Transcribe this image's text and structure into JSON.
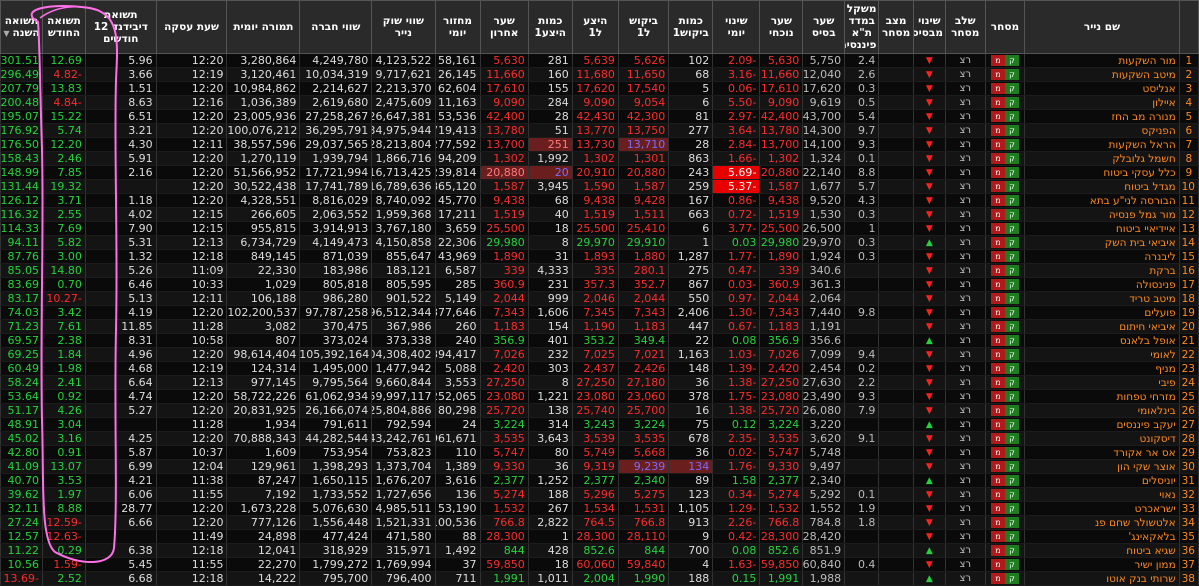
{
  "columns": [
    "שם נייר",
    "מסחר",
    "שלב מסחר",
    "שינוי מבסיס",
    "מצב מסחר",
    "משקל במדד ת\"א פיננסים",
    "שער בסיס",
    "שער נוכחי",
    "שינוי יומי",
    "כמות ביקוש1",
    "ביקוש ל1",
    "היצע ל1",
    "כמות היצע1",
    "שער אחרון",
    "מחזור יומי",
    "שווי שוק נייר",
    "שווי חברה",
    "תמורה יומית",
    "שעת עסקה",
    "תשואת דיבידנד 12 חודשים",
    "תשואה החודש",
    "תשואה השנה"
  ],
  "trading_stage": "רצ",
  "sort_icon": "sort-desc-icon",
  "rows": [
    {
      "i": "1",
      "name": "מור השקעות",
      "tri": "d",
      "w": "2.4",
      "base": "5,750",
      "cur": "5,630",
      "chg": "-2.09",
      "bq": "102",
      "bid": "5,626",
      "ask": "5,639",
      "aq": "281",
      "last": "5,630",
      "vol": "58,161",
      "mcap": "4,123,522",
      "cv": "4,249,780",
      "turn": "3,280,864",
      "time": "12:20",
      "div": "5.96",
      "mon": "12.69",
      "yr": "301.51"
    },
    {
      "i": "2",
      "name": "מיטב השקעות",
      "tri": "d",
      "w": "2.6",
      "base": "12,040",
      "cur": "11,660",
      "chg": "-3.16",
      "bq": "68",
      "bid": "11,650",
      "ask": "11,680",
      "aq": "160",
      "last": "11,660",
      "vol": "26,145",
      "mcap": "9,717,621",
      "cv": "10,034,319",
      "turn": "3,120,461",
      "time": "12:19",
      "div": "3.66",
      "mon": "-4.82",
      "yr": "296.49"
    },
    {
      "i": "3",
      "name": "אנליסט",
      "tri": "d",
      "w": "0.3",
      "base": "17,620",
      "cur": "17,610",
      "chg": "-0.06",
      "bq": "5",
      "bid": "17,540",
      "ask": "17,620",
      "aq": "155",
      "last": "17,610",
      "vol": "62,604",
      "mcap": "2,213,370",
      "cv": "2,214,627",
      "turn": "10,984,862",
      "time": "12:20",
      "div": "1.51",
      "mon": "13.83",
      "yr": "207.79"
    },
    {
      "i": "4",
      "name": "איילון",
      "tri": "d",
      "w": "0.5",
      "base": "9,619",
      "cur": "9,090",
      "chg": "-5.50",
      "bq": "6",
      "bid": "9,054",
      "ask": "9,090",
      "aq": "284",
      "last": "9,090",
      "vol": "11,163",
      "mcap": "2,475,609",
      "cv": "2,619,680",
      "turn": "1,036,389",
      "time": "12:16",
      "div": "8.63",
      "mon": "-4.84",
      "yr": "200.48"
    },
    {
      "i": "5",
      "name": "מנורה מב החז",
      "tri": "d",
      "w": "5.4",
      "base": "43,700",
      "cur": "42,400",
      "chg": "-2.97",
      "bq": "81",
      "bid": "42,300",
      "ask": "42,430",
      "aq": "28",
      "last": "42,400",
      "vol": "53,536",
      "mcap": "26,647,381",
      "cv": "27,258,267",
      "turn": "23,005,936",
      "time": "12:20",
      "div": "6.51",
      "mon": "15.22",
      "yr": "195.07"
    },
    {
      "i": "6",
      "name": "הפניקס",
      "tri": "d",
      "w": "9.7",
      "base": "14,300",
      "cur": "13,780",
      "chg": "-3.64",
      "bq": "277",
      "bid": "13,750",
      "ask": "13,770",
      "aq": "51",
      "last": "13,780",
      "vol": "719,413",
      "mcap": "34,975,944",
      "cv": "36,295,791",
      "turn": "100,076,212",
      "time": "12:20",
      "div": "3.21",
      "mon": "5.74",
      "yr": "176.92"
    },
    {
      "i": "7",
      "name": "הראל השקעות",
      "tri": "d",
      "w": "9.3",
      "base": "14,100",
      "cur": "13,700",
      "chg": "-2.84",
      "bq": "28",
      "bid": "13,710",
      "ask": "13,730",
      "aq": "251",
      "last": "13,700",
      "vol": "277,592",
      "mcap": "28,213,804",
      "cv": "29,037,565",
      "turn": "38,557,596",
      "time": "12:11",
      "div": "4.30",
      "mon": "12.20",
      "yr": "176.50",
      "bidBl": true,
      "aqLo": true
    },
    {
      "i": "8",
      "name": "חשמל גלובלק",
      "tri": "d",
      "w": "0.1",
      "base": "1,324",
      "cur": "1,302",
      "chg": "-1.66",
      "bq": "863",
      "bid": "1,301",
      "ask": "1,302",
      "aq": "1,992",
      "last": "1,302",
      "vol": "94,209",
      "mcap": "1,866,716",
      "cv": "1,939,794",
      "turn": "1,270,119",
      "time": "12:20",
      "div": "5.91",
      "mon": "2.46",
      "yr": "158.43"
    },
    {
      "i": "9",
      "name": "כלל עסקי ביטוח",
      "tri": "d",
      "w": "8.8",
      "base": "22,140",
      "cur": "20,880",
      "chg": "-5.69",
      "bq": "243",
      "bid": "20,880",
      "ask": "20,910",
      "aq": "20",
      "last": "20,880",
      "vol": "239,814",
      "mcap": "16,713,425",
      "cv": "17,721,994",
      "turn": "51,566,952",
      "time": "12:20",
      "div": "2.16",
      "mon": "7.85",
      "yr": "148.99",
      "aqBl": true,
      "lastLo": true,
      "chgRed": true
    },
    {
      "i": "10",
      "name": "מגדל ביטוח",
      "tri": "d",
      "w": "5.7",
      "base": "1,677",
      "cur": "1,587",
      "chg": "-5.37",
      "bq": "259",
      "bid": "1,587",
      "ask": "1,590",
      "aq": "3,945",
      "last": "1,587",
      "vol": "1,865,120",
      "mcap": "16,789,636",
      "cv": "17,741,789",
      "turn": "30,522,438",
      "time": "12:20",
      "div": "",
      "mon": "19.32",
      "yr": "131.44",
      "chgRed": true
    },
    {
      "i": "11",
      "name": "הבורסה לני\"ע בתא",
      "tri": "d",
      "w": "4.3",
      "base": "9,520",
      "cur": "9,438",
      "chg": "-0.86",
      "bq": "167",
      "bid": "9,428",
      "ask": "9,438",
      "aq": "68",
      "last": "9,438",
      "vol": "45,770",
      "mcap": "8,740,092",
      "cv": "8,816,029",
      "turn": "4,328,551",
      "time": "12:20",
      "div": "1.18",
      "mon": "3.71",
      "yr": "126.12"
    },
    {
      "i": "12",
      "name": "מור גמל פנסיה",
      "tri": "d",
      "w": "0.3",
      "base": "1,530",
      "cur": "1,519",
      "chg": "-0.72",
      "bq": "663",
      "bid": "1,511",
      "ask": "1,519",
      "aq": "40",
      "last": "1,519",
      "vol": "17,211",
      "mcap": "1,959,368",
      "cv": "2,063,552",
      "turn": "266,605",
      "time": "12:15",
      "div": "4.02",
      "mon": "2.55",
      "yr": "116.32"
    },
    {
      "i": "13",
      "name": "איידיאיי ביטוח",
      "tri": "d",
      "w": "1",
      "base": "26,500",
      "cur": "25,500",
      "chg": "-3.77",
      "bq": "6",
      "bid": "25,410",
      "ask": "25,500",
      "aq": "18",
      "last": "25,500",
      "vol": "3,659",
      "mcap": "3,767,180",
      "cv": "3,914,913",
      "turn": "955,815",
      "time": "12:15",
      "div": "7.90",
      "mon": "7.69",
      "yr": "114.33"
    },
    {
      "i": "14",
      "name": "איביאי בית השק",
      "tri": "u",
      "w": "0.3",
      "base": "29,970",
      "cur": "29,980",
      "chg": "0.03",
      "bq": "1",
      "bid": "29,910",
      "ask": "29,970",
      "aq": "8",
      "last": "29,980",
      "vol": "22,306",
      "mcap": "4,150,858",
      "cv": "4,149,473",
      "turn": "6,734,729",
      "time": "12:13",
      "div": "5.31",
      "mon": "5.82",
      "yr": "94.11",
      "up": true
    },
    {
      "i": "15",
      "name": "ליבנרה",
      "tri": "d",
      "w": "0.3",
      "base": "1,924",
      "cur": "1,890",
      "chg": "-1.77",
      "bq": "1,287",
      "bid": "1,880",
      "ask": "1,893",
      "aq": "31",
      "last": "1,890",
      "vol": "43,969",
      "mcap": "855,647",
      "cv": "871,039",
      "turn": "849,145",
      "time": "12:18",
      "div": "1.32",
      "mon": "3.00",
      "yr": "87.76"
    },
    {
      "i": "16",
      "name": "ברקת",
      "tri": "d",
      "w": "",
      "base": "340.6",
      "cur": "339",
      "chg": "-0.47",
      "bq": "275",
      "bid": "280.1",
      "ask": "335",
      "aq": "4,333",
      "last": "339",
      "vol": "6,587",
      "mcap": "183,121",
      "cv": "183,986",
      "turn": "22,330",
      "time": "11:09",
      "div": "5.26",
      "mon": "14.80",
      "yr": "85.05"
    },
    {
      "i": "17",
      "name": "פנינסולה",
      "tri": "d",
      "w": "",
      "base": "361.3",
      "cur": "360.9",
      "chg": "-0.03",
      "bq": "867",
      "bid": "352.7",
      "ask": "357.3",
      "aq": "231",
      "last": "360.9",
      "vol": "285",
      "mcap": "805,595",
      "cv": "805,818",
      "turn": "1,029",
      "time": "10:33",
      "div": "6.46",
      "mon": "0.70",
      "yr": "83.69"
    },
    {
      "i": "18",
      "name": "מיטב טריד",
      "tri": "d",
      "w": "",
      "base": "2,064",
      "cur": "2,044",
      "chg": "-0.97",
      "bq": "550",
      "bid": "2,044",
      "ask": "2,046",
      "aq": "999",
      "last": "2,044",
      "vol": "5,149",
      "mcap": "901,522",
      "cv": "986,280",
      "turn": "106,188",
      "time": "12:11",
      "div": "5.13",
      "mon": "-10.27",
      "yr": "83.17"
    },
    {
      "i": "19",
      "name": "פועלים",
      "tri": "d",
      "w": "9.8",
      "base": "7,440",
      "cur": "7,343",
      "chg": "-1.30",
      "bq": "2,406",
      "bid": "7,343",
      "ask": "7,345",
      "aq": "1,606",
      "last": "7,343",
      "vol": "1,377,646",
      "mcap": "96,512,344",
      "cv": "97,787,258",
      "turn": "102,200,537",
      "time": "12:20",
      "div": "4.19",
      "mon": "3.42",
      "yr": "74.03"
    },
    {
      "i": "20",
      "name": "איביאי חיתום",
      "tri": "d",
      "w": "",
      "base": "1,191",
      "cur": "1,183",
      "chg": "-0.67",
      "bq": "447",
      "bid": "1,183",
      "ask": "1,190",
      "aq": "154",
      "last": "1,183",
      "vol": "260",
      "mcap": "367,986",
      "cv": "370,475",
      "turn": "3,082",
      "time": "11:28",
      "div": "11.85",
      "mon": "7.61",
      "yr": "71.23"
    },
    {
      "i": "21",
      "name": "אופל בלאנס",
      "tri": "u",
      "w": "",
      "base": "356.6",
      "cur": "356.9",
      "chg": "0.08",
      "bq": "22",
      "bid": "349.4",
      "ask": "353.2",
      "aq": "401",
      "last": "356.9",
      "vol": "240",
      "mcap": "373,338",
      "cv": "373,024",
      "turn": "807",
      "time": "10:58",
      "div": "8.31",
      "mon": "2.38",
      "yr": "69.57",
      "up": true
    },
    {
      "i": "22",
      "name": "לאומי",
      "tri": "d",
      "w": "9.4",
      "base": "7,099",
      "cur": "7,026",
      "chg": "-1.03",
      "bq": "1,163",
      "bid": "7,021",
      "ask": "7,025",
      "aq": "232",
      "last": "7,026",
      "vol": "1,394,417",
      "mcap": "104,308,402",
      "cv": "105,392,164",
      "turn": "98,614,404",
      "time": "12:20",
      "div": "4.96",
      "mon": "1.84",
      "yr": "69.25"
    },
    {
      "i": "23",
      "name": "מניף",
      "tri": "d",
      "w": "0.2",
      "base": "2,454",
      "cur": "2,420",
      "chg": "-1.39",
      "bq": "148",
      "bid": "2,426",
      "ask": "2,437",
      "aq": "303",
      "last": "2,420",
      "vol": "5,088",
      "mcap": "1,477,942",
      "cv": "1,495,000",
      "turn": "124,314",
      "time": "12:19",
      "div": "4.68",
      "mon": "1.98",
      "yr": "60.49"
    },
    {
      "i": "24",
      "name": "פיבי",
      "tri": "d",
      "w": "2.2",
      "base": "27,630",
      "cur": "27,250",
      "chg": "-1.38",
      "bq": "36",
      "bid": "27,180",
      "ask": "27,250",
      "aq": "8",
      "last": "27,250",
      "vol": "3,553",
      "mcap": "9,660,844",
      "cv": "9,795,564",
      "turn": "977,145",
      "time": "12:13",
      "div": "6.64",
      "mon": "2.41",
      "yr": "58.24"
    },
    {
      "i": "25",
      "name": "מזרחי טפחות",
      "tri": "d",
      "w": "9.3",
      "base": "23,490",
      "cur": "23,080",
      "chg": "-1.75",
      "bq": "378",
      "bid": "23,060",
      "ask": "23,080",
      "aq": "1,221",
      "last": "23,080",
      "vol": "252,065",
      "mcap": "59,997,117",
      "cv": "61,062,934",
      "turn": "58,722,226",
      "time": "12:20",
      "div": "4.74",
      "mon": "0.92",
      "yr": "53.64"
    },
    {
      "i": "26",
      "name": "בינלאומי",
      "tri": "d",
      "w": "7.9",
      "base": "26,080",
      "cur": "25,720",
      "chg": "-1.38",
      "bq": "16",
      "bid": "25,700",
      "ask": "25,740",
      "aq": "138",
      "last": "25,720",
      "vol": "80,298",
      "mcap": "25,804,886",
      "cv": "26,166,074",
      "turn": "20,831,925",
      "time": "12:20",
      "div": "5.27",
      "mon": "4.26",
      "yr": "51.17"
    },
    {
      "i": "27",
      "name": "יעקב פיננסים",
      "tri": "u",
      "w": "",
      "base": "3,220",
      "cur": "3,224",
      "chg": "0.12",
      "bq": "75",
      "bid": "3,224",
      "ask": "3,243",
      "aq": "314",
      "last": "3,224",
      "vol": "24",
      "mcap": "792,594",
      "cv": "791,611",
      "turn": "1,934",
      "time": "11:28",
      "div": "",
      "mon": "3.04",
      "yr": "48.91",
      "up": true
    },
    {
      "i": "28",
      "name": "דיסקונט",
      "tri": "d",
      "w": "9.1",
      "base": "3,620",
      "cur": "3,535",
      "chg": "-2.35",
      "bq": "678",
      "bid": "3,535",
      "ask": "3,539",
      "aq": "3,643",
      "last": "3,535",
      "vol": "1,961,671",
      "mcap": "43,242,761",
      "cv": "44,282,544",
      "turn": "70,888,343",
      "time": "12:20",
      "div": "4.25",
      "mon": "3.16",
      "yr": "45.02"
    },
    {
      "i": "29",
      "name": "אס אר אקורד",
      "tri": "d",
      "w": "",
      "base": "5,748",
      "cur": "5,747",
      "chg": "-0.02",
      "bq": "36",
      "bid": "5,668",
      "ask": "5,749",
      "aq": "80",
      "last": "5,747",
      "vol": "110",
      "mcap": "753,823",
      "cv": "753,954",
      "turn": "1,609",
      "time": "10:37",
      "div": "5.87",
      "mon": "0.91",
      "yr": "42.80"
    },
    {
      "i": "30",
      "name": "אוצר שקי הון",
      "tri": "d",
      "w": "",
      "base": "9,497",
      "cur": "9,330",
      "chg": "-1.76",
      "bq": "134",
      "bid": "9,239",
      "ask": "9,319",
      "aq": "36",
      "last": "9,330",
      "vol": "1,389",
      "mcap": "1,373,704",
      "cv": "1,398,293",
      "turn": "129,961",
      "time": "12:04",
      "div": "6.99",
      "mon": "13.07",
      "yr": "41.09",
      "bqBl": true,
      "bidBl": true
    },
    {
      "i": "31",
      "name": "יוניסלים",
      "tri": "u",
      "w": "",
      "base": "2,340",
      "cur": "2,377",
      "chg": "1.58",
      "bq": "89",
      "bid": "2,340",
      "ask": "2,377",
      "aq": "1,252",
      "last": "2,377",
      "vol": "3,616",
      "mcap": "1,676,207",
      "cv": "1,650,115",
      "turn": "87,247",
      "time": "11:38",
      "div": "4.21",
      "mon": "3.53",
      "yr": "40.70",
      "up": true
    },
    {
      "i": "32",
      "name": "נאוי",
      "tri": "d",
      "w": "0.1",
      "base": "5,292",
      "cur": "5,274",
      "chg": "-0.34",
      "bq": "123",
      "bid": "5,275",
      "ask": "5,296",
      "aq": "188",
      "last": "5,274",
      "vol": "136",
      "mcap": "1,727,656",
      "cv": "1,733,552",
      "turn": "7,192",
      "time": "11:55",
      "div": "6.06",
      "mon": "1.97",
      "yr": "39.62"
    },
    {
      "i": "33",
      "name": "ישראכרט",
      "tri": "d",
      "w": "1.9",
      "base": "1,552",
      "cur": "1,532",
      "chg": "-1.29",
      "bq": "1,105",
      "bid": "1,531",
      "ask": "1,534",
      "aq": "267",
      "last": "1,532",
      "vol": "53,190",
      "mcap": "4,985,511",
      "cv": "5,076,630",
      "turn": "1,673,228",
      "time": "12:20",
      "div": "28.77",
      "mon": "8.88",
      "yr": "32.11"
    },
    {
      "i": "34",
      "name": "אלטשולר שחם פנ",
      "tri": "d",
      "w": "1.8",
      "base": "784.8",
      "cur": "766.8",
      "chg": "-2.26",
      "bq": "913",
      "bid": "766.8",
      "ask": "764.5",
      "aq": "2,822",
      "last": "766.8",
      "vol": "100,536",
      "mcap": "1,521,331",
      "cv": "1,556,448",
      "turn": "777,126",
      "time": "12:20",
      "div": "6.66",
      "mon": "-12.59",
      "yr": "27.24"
    },
    {
      "i": "35",
      "name": "בלאקאינג'",
      "tri": "d",
      "w": "",
      "base": "28,420",
      "cur": "28,300",
      "chg": "-0.42",
      "bq": "9",
      "bid": "28,110",
      "ask": "28,300",
      "aq": "1",
      "last": "28,300",
      "vol": "88",
      "mcap": "471,580",
      "cv": "477,424",
      "turn": "24,898",
      "time": "11:49",
      "div": "",
      "mon": "-12.63",
      "yr": "12.57"
    },
    {
      "i": "36",
      "name": "שגיא ביטוח",
      "tri": "u",
      "w": "",
      "base": "851.9",
      "cur": "852.6",
      "chg": "0.08",
      "bq": "700",
      "bid": "844",
      "ask": "852.6",
      "aq": "428",
      "last": "844",
      "vol": "1,492",
      "mcap": "315,971",
      "cv": "318,929",
      "turn": "12,041",
      "time": "12:18",
      "div": "6.38",
      "mon": "0.29",
      "yr": "11.22",
      "up": true
    },
    {
      "i": "37",
      "name": "ממון ישיר",
      "tri": "d",
      "w": "0.4",
      "base": "60,840",
      "cur": "59,850",
      "chg": "-1.63",
      "bq": "4",
      "bid": "59,840",
      "ask": "60,060",
      "aq": "18",
      "last": "59,850",
      "vol": "37",
      "mcap": "1,769,994",
      "cv": "1,799,272",
      "turn": "22,270",
      "time": "11:55",
      "div": "5.45",
      "mon": "-1.59",
      "yr": "10.56"
    },
    {
      "i": "38",
      "name": "שרותי בנק אוטו",
      "tri": "u",
      "w": "",
      "base": "1,988",
      "cur": "1,991",
      "chg": "0.15",
      "bq": "188",
      "bid": "1,990",
      "ask": "2,004",
      "aq": "1,011",
      "last": "1,991",
      "vol": "711",
      "mcap": "796,400",
      "cv": "795,700",
      "turn": "14,222",
      "time": "12:18",
      "div": "6.68",
      "mon": "2.52",
      "yr": "-13.69",
      "up": true
    }
  ]
}
